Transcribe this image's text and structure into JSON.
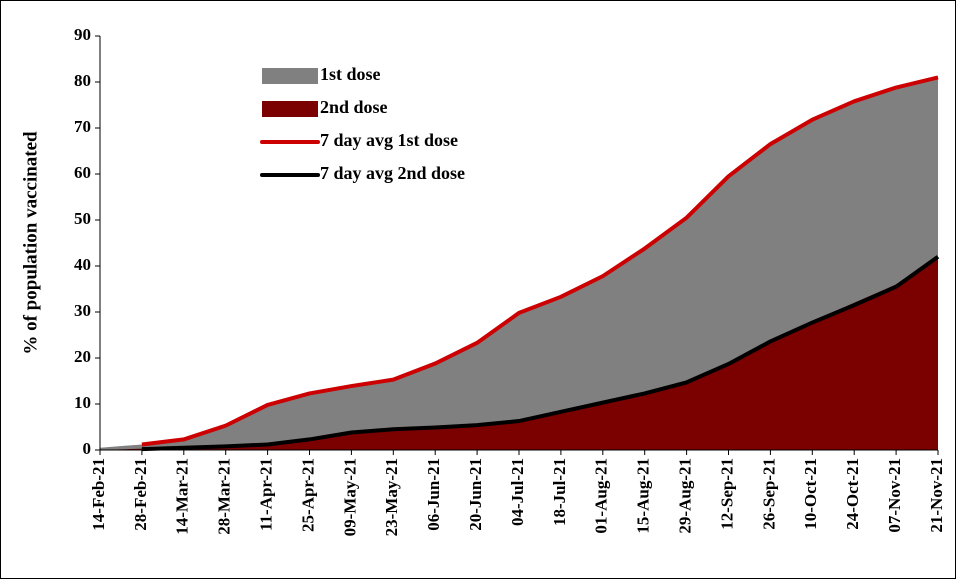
{
  "chart_data": {
    "type": "area",
    "y_label": "% of population vaccinated",
    "categories": [
      "14-Feb-21",
      "28-Feb-21",
      "14-Mar-21",
      "28-Mar-21",
      "11-Apr-21",
      "25-Apr-21",
      "09-May-21",
      "23-May-21",
      "06-Jun-21",
      "20-Jun-21",
      "04-Jul-21",
      "18-Jul-21",
      "01-Aug-21",
      "15-Aug-21",
      "29-Aug-21",
      "12-Sep-21",
      "26-Sep-21",
      "10-Oct-21",
      "24-Oct-21",
      "07-Nov-21",
      "21-Nov-21"
    ],
    "series": [
      {
        "name": "1st dose",
        "type": "area",
        "color": "#808080",
        "values": [
          0.5,
          1.2,
          2.5,
          5.5,
          10,
          12.5,
          14,
          15.5,
          19,
          23.5,
          30,
          33.5,
          38,
          44,
          51,
          60,
          67,
          72,
          76,
          79,
          81
        ]
      },
      {
        "name": "2nd dose",
        "type": "area",
        "color": "#7b0000",
        "values": [
          0,
          0.3,
          0.6,
          0.9,
          1.3,
          2.5,
          4,
          4.6,
          5,
          5.5,
          6.5,
          8.5,
          10.5,
          12.5,
          15,
          19,
          24,
          28,
          32,
          36,
          42
        ]
      },
      {
        "name": "7 day avg 1st dose",
        "type": "line",
        "color": "#cc0000",
        "values": [
          null,
          1.2,
          2.3,
          5.3,
          9.8,
          12.3,
          13.9,
          15.3,
          18.8,
          23.3,
          29.8,
          33.3,
          37.8,
          43.8,
          50.5,
          59.5,
          66.5,
          71.8,
          75.8,
          78.8,
          81
        ]
      },
      {
        "name": "7 day avg 2nd dose",
        "type": "line",
        "color": "#000000",
        "values": [
          null,
          0.2,
          0.5,
          0.8,
          1.2,
          2.3,
          3.8,
          4.5,
          4.9,
          5.4,
          6.3,
          8.3,
          10.3,
          12.3,
          14.7,
          18.7,
          23.6,
          27.7,
          31.5,
          35.5,
          42
        ]
      }
    ],
    "ylim": [
      0,
      90
    ],
    "yticks": [
      0,
      10,
      20,
      30,
      40,
      50,
      60,
      70,
      80,
      90
    ],
    "grid": false
  }
}
